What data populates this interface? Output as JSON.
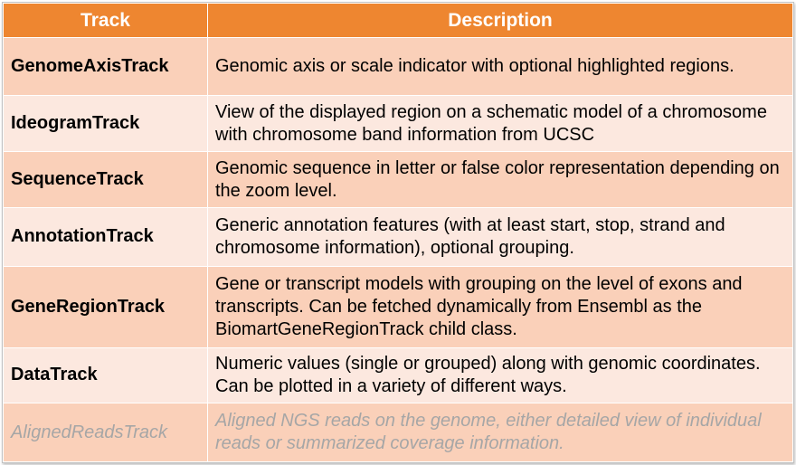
{
  "table": {
    "headers": [
      "Track",
      "Description"
    ],
    "rows": [
      {
        "track": "GenomeAxisTrack",
        "description": "Genomic axis or scale indicator with optional highlighted regions."
      },
      {
        "track": "IdeogramTrack",
        "description": "View of the displayed region on a schematic model of a chromosome with chromosome band information from UCSC"
      },
      {
        "track": "SequenceTrack",
        "description": "Genomic sequence in letter or false color representation depending on the zoom level."
      },
      {
        "track": "AnnotationTrack",
        "description": "Generic annotation features (with at least start, stop, strand and chromosome information), optional grouping."
      },
      {
        "track": "GeneRegionTrack",
        "description": "Gene or transcript models with grouping on the level of exons and transcripts. Can be fetched dynamically from Ensembl as the BiomartGeneRegionTrack child class."
      },
      {
        "track": "DataTrack",
        "description": "Numeric values (single or grouped) along with genomic coordinates. Can be plotted in a variety of different ways."
      },
      {
        "track": "AlignedReadsTrack",
        "description": "Aligned NGS reads on the genome, either detailed view of individual reads or summarized coverage information."
      }
    ]
  },
  "colors": {
    "header_bg": "#ee8630",
    "row_odd_bg": "#fad0b9",
    "row_even_bg": "#fce8df",
    "muted_text": "#a6a6a6"
  }
}
